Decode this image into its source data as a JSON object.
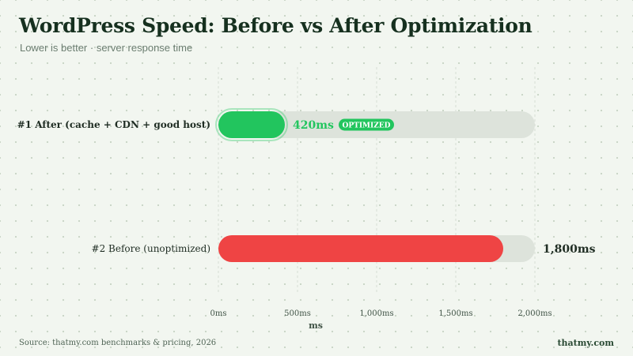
{
  "header": {
    "title": "WordPress Speed: Before vs After Optimization",
    "subtitle": "Lower is better · server response time"
  },
  "chart_data": {
    "type": "bar",
    "orientation": "horizontal",
    "categories": [
      "#1  After (cache + CDN + good host)",
      "#2  Before (unoptimized)"
    ],
    "values": [
      420,
      1800
    ],
    "value_labels": [
      "420ms",
      "1,800ms"
    ],
    "badges": [
      "OPTIMIZED",
      ""
    ],
    "xlabel": "ms",
    "xlim": [
      0,
      2000
    ],
    "xticks": [
      0,
      500,
      1000,
      1500,
      2000
    ],
    "xtick_labels": [
      "0ms",
      "500ms",
      "1,000ms",
      "1,500ms",
      "2,000ms"
    ],
    "colors": [
      "#22c55e",
      "#ef4444"
    ],
    "track_color": "#dde3db",
    "grid": true
  },
  "footer": {
    "source": "Source: thatmy.com benchmarks & pricing, 2026",
    "brand": "thatmy.com"
  }
}
